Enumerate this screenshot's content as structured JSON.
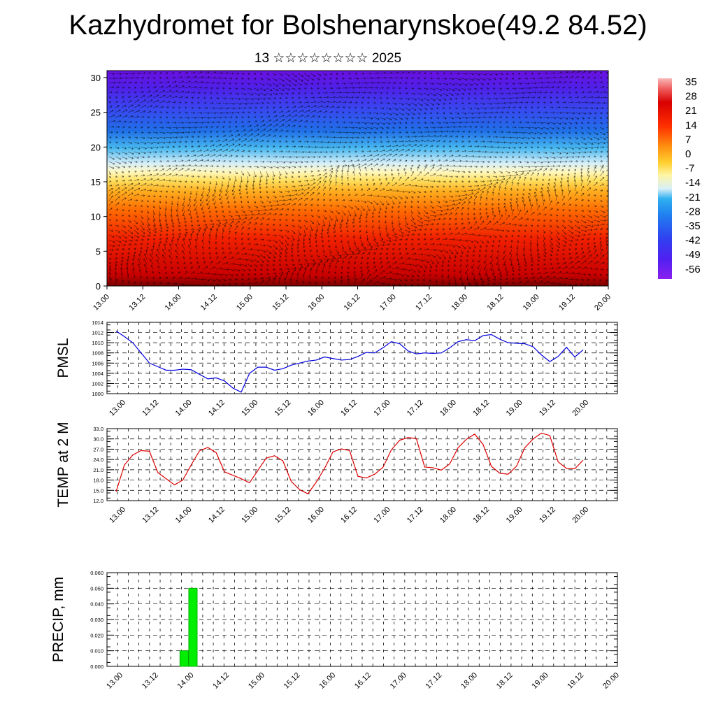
{
  "header": {
    "title": "Kazhydromet for Bolshenarynskoe(49.2 84.52)",
    "subtitle": "13 ☆☆☆☆☆☆☆☆ 2025"
  },
  "time_labels": [
    "13.00",
    "13.12",
    "14.00",
    "14.12",
    "15.00",
    "15.12",
    "16.00",
    "16.12",
    "17.00",
    "17.12",
    "18.00",
    "18.12",
    "19.00",
    "19.12",
    "20.00"
  ],
  "colors": {
    "pmsl_line": "#0000dd",
    "temp_line": "#dd0000",
    "precip_bar": "#00ee00",
    "precip_edge": "#00aa00",
    "grid": "#000000"
  },
  "chart_data": [
    {
      "type": "heatmap",
      "title": "",
      "ylabel": "",
      "x_tick_labels": [
        "13.00",
        "13.12",
        "14.00",
        "14.12",
        "15.00",
        "15.12",
        "16.00",
        "16.12",
        "17.00",
        "17.12",
        "18.00",
        "18.12",
        "19.00",
        "19.12",
        "20.00"
      ],
      "y_ticks": [
        0,
        5,
        10,
        15,
        20,
        25,
        30
      ],
      "ylim": [
        0,
        31
      ],
      "colorbar": {
        "labels": [
          "35",
          "28",
          "21",
          "14",
          "7",
          "0",
          "-7",
          "-14",
          "-21",
          "-28",
          "-35",
          "-42",
          "-49",
          "-56"
        ],
        "range": [
          -60,
          38
        ]
      },
      "wind_vectors": true
    },
    {
      "type": "line",
      "ylabel": "PMSL",
      "x_tick_labels": [
        "13.00",
        "13.12",
        "14.00",
        "14.12",
        "15.00",
        "15.12",
        "16.00",
        "16.12",
        "17.00",
        "17.12",
        "18.00",
        "18.12",
        "19.00",
        "19.12",
        "20.00"
      ],
      "y_tick_labels": [
        "1000",
        "1002",
        "1004",
        "1006",
        "1008",
        "1010",
        "1012",
        "1014"
      ],
      "ylim": [
        1000,
        1014
      ],
      "series": [
        {
          "values": [
            1012.3,
            1011.2,
            1010.0,
            1008.0,
            1006.0,
            1005.3,
            1004.6,
            1004.6,
            1004.8,
            1004.7,
            1003.8,
            1002.9,
            1003.1,
            1002.5,
            1001.1,
            1000.3,
            1004.0,
            1005.2,
            1005.2,
            1004.6,
            1004.9,
            1005.6,
            1006.0,
            1006.4,
            1006.6,
            1007.2,
            1006.9,
            1006.6,
            1006.7,
            1007.3,
            1008.1,
            1008.0,
            1009.0,
            1010.2,
            1009.8,
            1008.4,
            1007.8,
            1008.0,
            1007.9,
            1008.0,
            1009.0,
            1010.2,
            1010.6,
            1010.4,
            1011.4,
            1011.6,
            1010.7,
            1010.0,
            1009.9,
            1009.8,
            1009.2,
            1007.6,
            1006.3,
            1007.3,
            1009.1,
            1007.2,
            1008.6
          ]
        }
      ]
    },
    {
      "type": "line",
      "ylabel": "TEMP at 2 M",
      "x_tick_labels": [
        "13.00",
        "13.12",
        "14.00",
        "14.12",
        "15.00",
        "15.12",
        "16.00",
        "16.12",
        "17.00",
        "17.12",
        "18.00",
        "18.12",
        "19.00",
        "19.12",
        "20.00"
      ],
      "y_tick_labels": [
        "12.0",
        "15.0",
        "18.0",
        "21.0",
        "24.0",
        "27.0",
        "30.0",
        "33.0"
      ],
      "ylim": [
        12,
        33
      ],
      "series": [
        {
          "values": [
            14.6,
            22.4,
            25.3,
            26.6,
            26.4,
            20.2,
            18.4,
            16.6,
            18.0,
            22.4,
            26.5,
            27.5,
            26.0,
            20.4,
            19.4,
            18.4,
            17.2,
            20.8,
            24.4,
            25.1,
            23.6,
            17.6,
            15.2,
            14.0,
            17.4,
            21.4,
            26.2,
            27.1,
            26.6,
            19.1,
            18.6,
            19.7,
            21.7,
            26.8,
            29.6,
            30.4,
            30.1,
            21.8,
            21.6,
            20.9,
            22.7,
            27.4,
            29.9,
            31.4,
            28.4,
            22.0,
            20.0,
            19.7,
            22.0,
            27.4,
            30.0,
            31.7,
            31.0,
            23.3,
            21.4,
            21.3,
            23.8
          ]
        }
      ]
    },
    {
      "type": "bar",
      "ylabel": "PRECIP, mm",
      "x_tick_labels": [
        "13.00",
        "13.12",
        "14.00",
        "14.12",
        "15.00",
        "15.12",
        "16.00",
        "16.12",
        "17.00",
        "17.12",
        "18.00",
        "18.12",
        "19.00",
        "19.12",
        "20.00"
      ],
      "y_tick_labels": [
        "0.000",
        "0.010",
        "0.020",
        "0.030",
        "0.040",
        "0.050",
        "0.060"
      ],
      "ylim": [
        0,
        0.06
      ],
      "bars": [
        {
          "hour": 24,
          "value": 0.01
        },
        {
          "hour": 27,
          "value": 0.05
        }
      ]
    }
  ]
}
